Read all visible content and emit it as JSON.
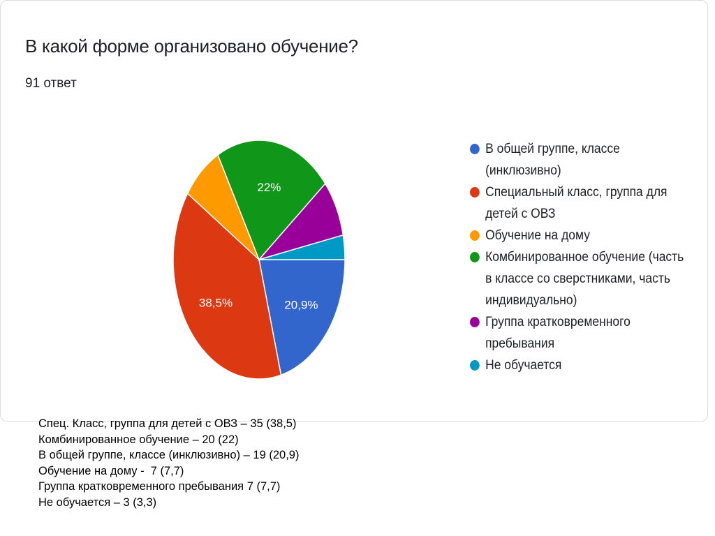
{
  "title": "В какой форме организовано обучение?",
  "responses": "91 ответ",
  "chart_data": {
    "type": "pie",
    "title": "В какой форме организовано обучение?",
    "slices": [
      {
        "label": "В общей группе, классе (инклюзивно)",
        "value": 20.9,
        "display": "20,9%",
        "color": "#3366cc"
      },
      {
        "label": "Специальный класс, группа для детей с ОВЗ",
        "value": 38.5,
        "display": "38,5%",
        "color": "#dc3912"
      },
      {
        "label": "Обучение на дому",
        "value": 7.7,
        "display": "",
        "color": "#ff9900"
      },
      {
        "label": "Комбинированное обучение (часть в классе со сверстниками, часть индивидуально)",
        "value": 22.0,
        "display": "22%",
        "color": "#109618"
      },
      {
        "label": "Группа кратковременного пребывания",
        "value": 7.7,
        "display": "",
        "color": "#990099"
      },
      {
        "label": "Не обучается",
        "value": 3.3,
        "display": "",
        "color": "#0099c6"
      }
    ],
    "legend_position": "right"
  },
  "summary_lines": [
    "Спец. Класс, группа для детей с ОВЗ – 35 (38,5)",
    "Комбинированное обучение – 20 (22)",
    "В общей группе, классе (инклюзивно) – 19 (20,9)",
    "Обучение на дому -  7 (7,7)",
    "Группа кратковременного пребывания 7 (7,7)",
    "Не обучается – 3 (3,3)"
  ]
}
